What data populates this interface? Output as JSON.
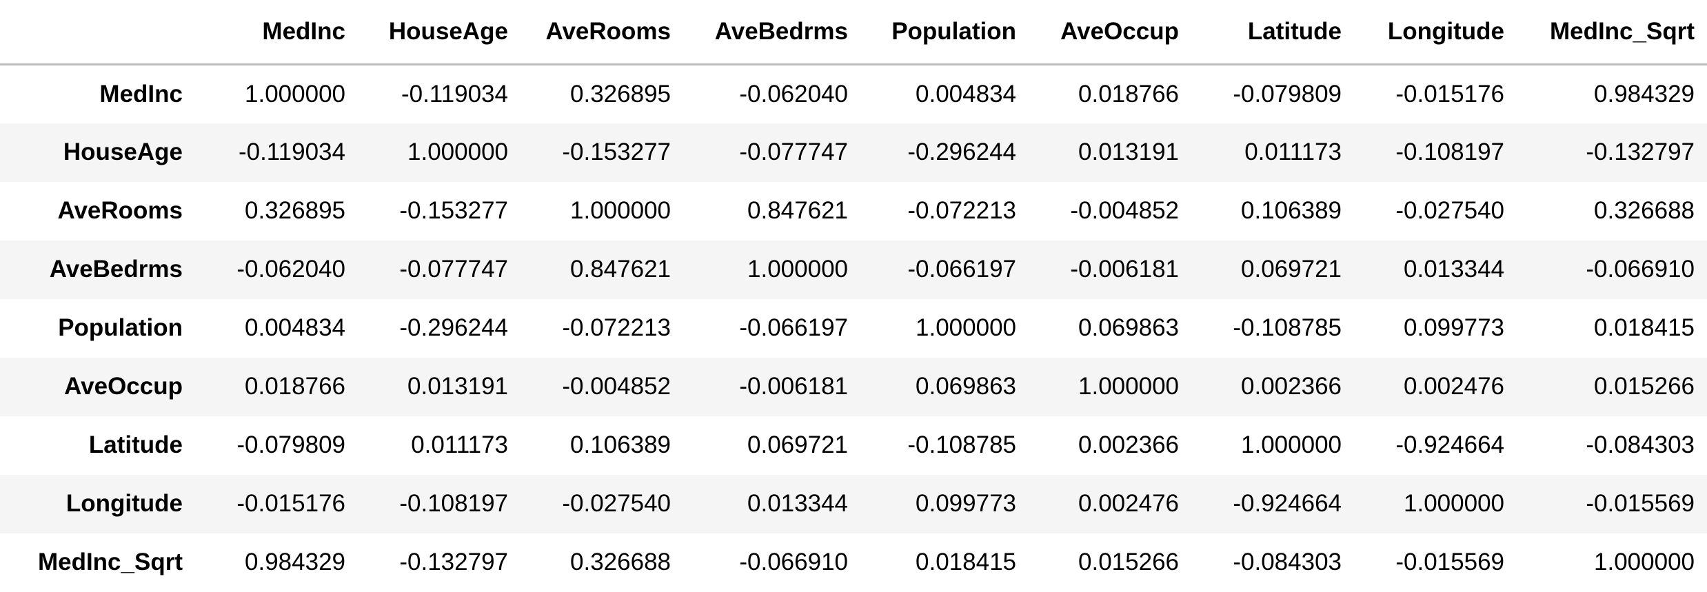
{
  "table": {
    "index_header": "",
    "columns": [
      "MedInc",
      "HouseAge",
      "AveRooms",
      "AveBedrms",
      "Population",
      "AveOccup",
      "Latitude",
      "Longitude",
      "MedInc_Sqrt"
    ],
    "rows": [
      {
        "label": "MedInc",
        "cells": [
          "1.000000",
          "-0.119034",
          "0.326895",
          "-0.062040",
          "0.004834",
          "0.018766",
          "-0.079809",
          "-0.015176",
          "0.984329"
        ]
      },
      {
        "label": "HouseAge",
        "cells": [
          "-0.119034",
          "1.000000",
          "-0.153277",
          "-0.077747",
          "-0.296244",
          "0.013191",
          "0.011173",
          "-0.108197",
          "-0.132797"
        ]
      },
      {
        "label": "AveRooms",
        "cells": [
          "0.326895",
          "-0.153277",
          "1.000000",
          "0.847621",
          "-0.072213",
          "-0.004852",
          "0.106389",
          "-0.027540",
          "0.326688"
        ]
      },
      {
        "label": "AveBedrms",
        "cells": [
          "-0.062040",
          "-0.077747",
          "0.847621",
          "1.000000",
          "-0.066197",
          "-0.006181",
          "0.069721",
          "0.013344",
          "-0.066910"
        ]
      },
      {
        "label": "Population",
        "cells": [
          "0.004834",
          "-0.296244",
          "-0.072213",
          "-0.066197",
          "1.000000",
          "0.069863",
          "-0.108785",
          "0.099773",
          "0.018415"
        ]
      },
      {
        "label": "AveOccup",
        "cells": [
          "0.018766",
          "0.013191",
          "-0.004852",
          "-0.006181",
          "0.069863",
          "1.000000",
          "0.002366",
          "0.002476",
          "0.015266"
        ]
      },
      {
        "label": "Latitude",
        "cells": [
          "-0.079809",
          "0.011173",
          "0.106389",
          "0.069721",
          "-0.108785",
          "0.002366",
          "1.000000",
          "-0.924664",
          "-0.084303"
        ]
      },
      {
        "label": "Longitude",
        "cells": [
          "-0.015176",
          "-0.108197",
          "-0.027540",
          "0.013344",
          "0.099773",
          "0.002476",
          "-0.924664",
          "1.000000",
          "-0.015569"
        ]
      },
      {
        "label": "MedInc_Sqrt",
        "cells": [
          "0.984329",
          "-0.132797",
          "0.326688",
          "-0.066910",
          "0.018415",
          "0.015266",
          "-0.084303",
          "-0.015569",
          "1.000000"
        ]
      }
    ]
  }
}
